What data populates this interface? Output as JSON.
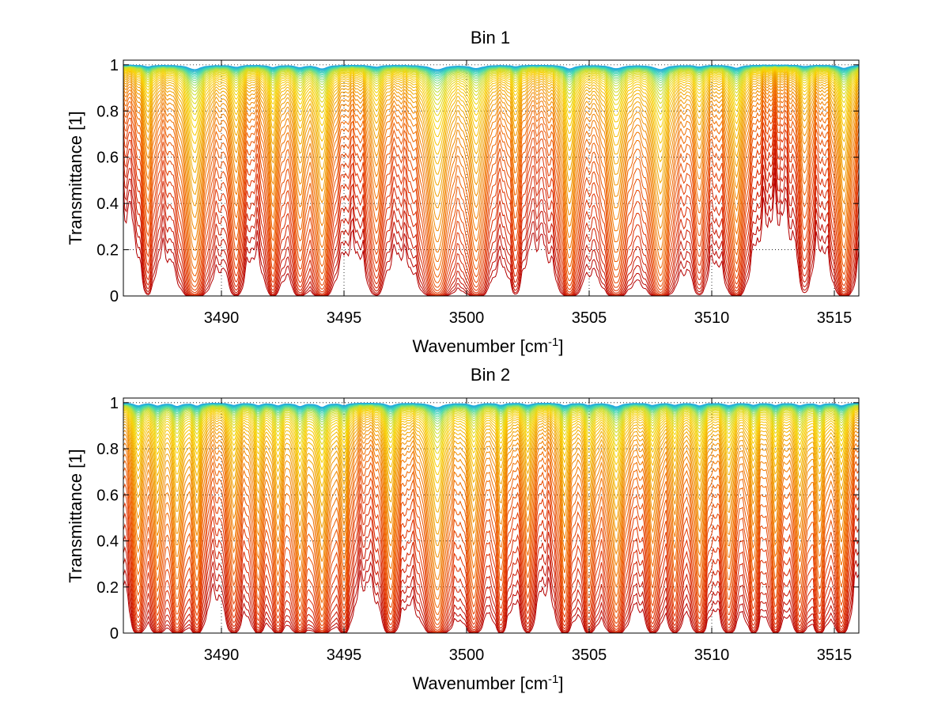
{
  "chart_data": [
    {
      "type": "line",
      "title": "Bin 1",
      "xlabel": "Wavenumber [cm",
      "xlabel_superscript": "-1",
      "xlabel_suffix": "]",
      "ylabel": "Transmittance [1]",
      "xlim": [
        3486,
        3516
      ],
      "ylim": [
        0,
        1.02
      ],
      "xticks": [
        3490,
        3495,
        3500,
        3505,
        3510,
        3515
      ],
      "yticks": [
        0,
        0.2,
        0.4,
        0.6,
        0.8,
        1
      ],
      "ytick_labels": [
        "0",
        "0.2",
        "0.4",
        "0.6",
        "0.8",
        "1"
      ],
      "grid": "dotted",
      "series_count": 48,
      "colormap": [
        "#b40000",
        "#e03000",
        "#f06a00",
        "#f0a000",
        "#f8d000",
        "#c8e030",
        "#40d8b0",
        "#20a8e0"
      ],
      "line_centers": [
        3487.0,
        3488.9,
        3490.6,
        3492.1,
        3493.2,
        3494.1,
        3496.3,
        3498.8,
        3500.4,
        3502.0,
        3504.2,
        3506.1,
        3507.9,
        3509.5,
        3511.0,
        3513.8,
        3515.4
      ],
      "line_strengths": [
        0.35,
        1.0,
        0.45,
        0.5,
        0.5,
        0.8,
        0.4,
        1.0,
        0.7,
        0.3,
        0.8,
        0.75,
        0.95,
        0.35,
        0.65,
        0.3,
        0.7
      ],
      "line_widths": [
        0.2,
        0.3,
        0.2,
        0.2,
        0.2,
        0.25,
        0.25,
        0.35,
        0.3,
        0.2,
        0.25,
        0.3,
        0.3,
        0.2,
        0.25,
        0.2,
        0.25
      ],
      "optical_depth_min": 0.02,
      "optical_depth_max": 12
    },
    {
      "type": "line",
      "title": "Bin 2",
      "xlabel": "Wavenumber [cm",
      "xlabel_superscript": "-1",
      "xlabel_suffix": "]",
      "ylabel": "Transmittance [1]",
      "xlim": [
        3486,
        3516
      ],
      "ylim": [
        0,
        1.02
      ],
      "xticks": [
        3490,
        3495,
        3500,
        3505,
        3510,
        3515
      ],
      "yticks": [
        0,
        0.2,
        0.4,
        0.6,
        0.8,
        1
      ],
      "ytick_labels": [
        "0",
        "0.2",
        "0.4",
        "0.6",
        "0.8",
        "1"
      ],
      "grid": "dotted",
      "series_count": 48,
      "colormap": [
        "#b40000",
        "#e03000",
        "#f06a00",
        "#f0a000",
        "#f8d000",
        "#c8e030",
        "#40d8b0",
        "#20a8e0"
      ],
      "line_centers": [
        3486.6,
        3487.4,
        3488.2,
        3489.0,
        3490.5,
        3491.5,
        3492.3,
        3493.2,
        3494.1,
        3495.0,
        3496.9,
        3498.8,
        3500.3,
        3501.4,
        3502.5,
        3504.0,
        3505.0,
        3506.1,
        3507.6,
        3508.5,
        3509.5,
        3510.7,
        3511.7,
        3512.6,
        3513.6,
        3514.4,
        3515.3
      ],
      "line_strengths": [
        0.6,
        0.6,
        0.7,
        0.6,
        0.5,
        0.5,
        0.55,
        0.7,
        0.85,
        0.5,
        0.65,
        1.0,
        0.6,
        0.45,
        0.45,
        0.55,
        0.5,
        0.8,
        0.5,
        0.45,
        0.6,
        0.55,
        0.45,
        0.5,
        0.55,
        0.5,
        0.6
      ],
      "line_widths": [
        0.18,
        0.18,
        0.2,
        0.18,
        0.2,
        0.18,
        0.18,
        0.2,
        0.22,
        0.18,
        0.2,
        0.3,
        0.22,
        0.18,
        0.18,
        0.2,
        0.18,
        0.25,
        0.2,
        0.18,
        0.2,
        0.2,
        0.18,
        0.18,
        0.2,
        0.18,
        0.2
      ],
      "optical_depth_min": 0.02,
      "optical_depth_max": 12
    }
  ]
}
